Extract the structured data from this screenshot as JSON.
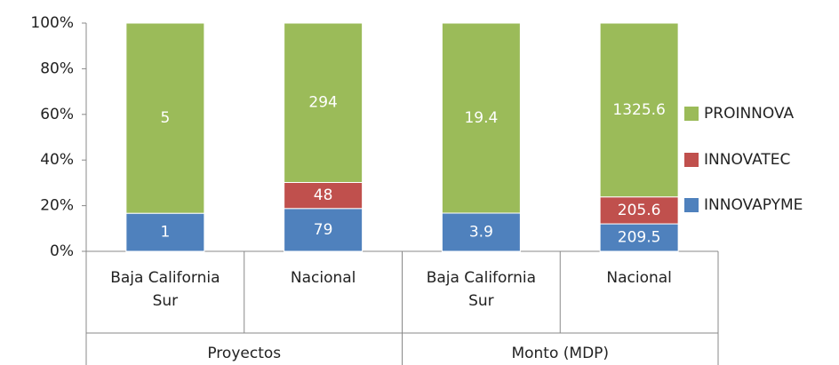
{
  "chart_data": {
    "type": "bar",
    "stacking": "percent",
    "categories": [
      "Baja California Sur",
      "Nacional",
      "Baja California Sur",
      "Nacional"
    ],
    "groups": [
      {
        "name": "Proyectos",
        "span": 2
      },
      {
        "name": "Monto (MDP)",
        "span": 2
      }
    ],
    "series": [
      {
        "name": "INNOVAPYME",
        "color": "#4f81bd",
        "values": [
          1,
          79,
          3.9,
          209.5
        ]
      },
      {
        "name": "INNOVATEC",
        "color": "#c0504d",
        "values": [
          null,
          48,
          null,
          205.6
        ]
      },
      {
        "name": "PROINNOVA",
        "color": "#9bbb59",
        "values": [
          5,
          294,
          19.4,
          1325.6
        ]
      }
    ],
    "ylim": [
      0,
      100
    ],
    "yticks": [
      {
        "value": 0,
        "label": "0%"
      },
      {
        "value": 20,
        "label": "20%"
      },
      {
        "value": 40,
        "label": "40%"
      },
      {
        "value": 60,
        "label": "60%"
      },
      {
        "value": 80,
        "label": "80%"
      },
      {
        "value": 100,
        "label": "100%"
      }
    ],
    "legend": "right"
  }
}
